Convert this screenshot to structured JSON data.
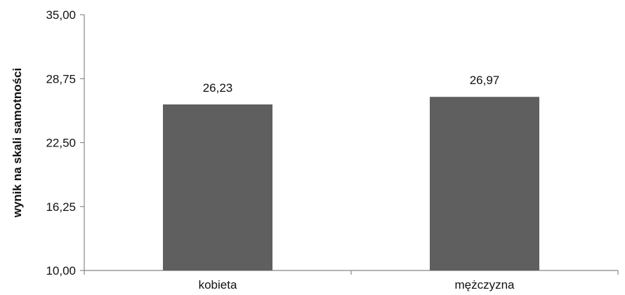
{
  "chart_data": {
    "type": "bar",
    "title": "",
    "xlabel": "",
    "ylabel": "wynik na skali samotności",
    "categories": [
      "kobieta",
      "mężczyzna"
    ],
    "values": [
      26.23,
      26.97
    ],
    "value_labels": [
      "26,23",
      "26,97"
    ],
    "ylim": [
      10,
      35
    ],
    "yticks": [
      10,
      16.25,
      22.5,
      28.75,
      35
    ],
    "ytick_labels": [
      "10,00",
      "16,25",
      "22,50",
      "28,75",
      "35,00"
    ],
    "grid": false,
    "legend": "none",
    "bar_color": "#5f5f5f",
    "axis_color": "#888888"
  }
}
